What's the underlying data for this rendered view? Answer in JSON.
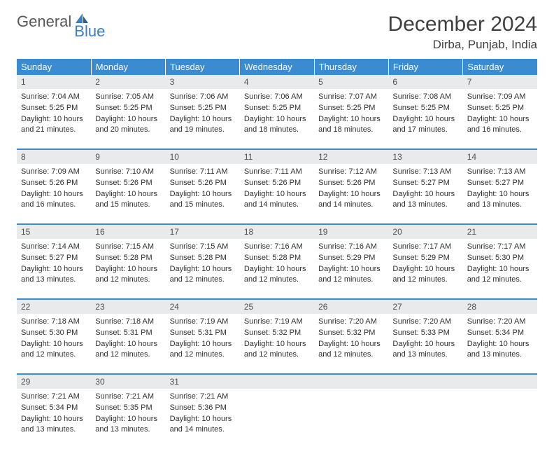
{
  "logo": {
    "part1": "General",
    "part2": "Blue"
  },
  "title": "December 2024",
  "location": "Dirba, Punjab, India",
  "colors": {
    "header_bg": "#3a8bd0",
    "header_text": "#ffffff",
    "daynum_bg": "#e9eaeb",
    "row_border": "#3a8bd0",
    "logo_gray": "#585858",
    "logo_blue": "#3a7fc4",
    "text": "#303030"
  },
  "day_headers": [
    "Sunday",
    "Monday",
    "Tuesday",
    "Wednesday",
    "Thursday",
    "Friday",
    "Saturday"
  ],
  "weeks": [
    [
      {
        "n": "1",
        "sr": "7:04 AM",
        "ss": "5:25 PM",
        "dl": "10 hours and 21 minutes."
      },
      {
        "n": "2",
        "sr": "7:05 AM",
        "ss": "5:25 PM",
        "dl": "10 hours and 20 minutes."
      },
      {
        "n": "3",
        "sr": "7:06 AM",
        "ss": "5:25 PM",
        "dl": "10 hours and 19 minutes."
      },
      {
        "n": "4",
        "sr": "7:06 AM",
        "ss": "5:25 PM",
        "dl": "10 hours and 18 minutes."
      },
      {
        "n": "5",
        "sr": "7:07 AM",
        "ss": "5:25 PM",
        "dl": "10 hours and 18 minutes."
      },
      {
        "n": "6",
        "sr": "7:08 AM",
        "ss": "5:25 PM",
        "dl": "10 hours and 17 minutes."
      },
      {
        "n": "7",
        "sr": "7:09 AM",
        "ss": "5:25 PM",
        "dl": "10 hours and 16 minutes."
      }
    ],
    [
      {
        "n": "8",
        "sr": "7:09 AM",
        "ss": "5:26 PM",
        "dl": "10 hours and 16 minutes."
      },
      {
        "n": "9",
        "sr": "7:10 AM",
        "ss": "5:26 PM",
        "dl": "10 hours and 15 minutes."
      },
      {
        "n": "10",
        "sr": "7:11 AM",
        "ss": "5:26 PM",
        "dl": "10 hours and 15 minutes."
      },
      {
        "n": "11",
        "sr": "7:11 AM",
        "ss": "5:26 PM",
        "dl": "10 hours and 14 minutes."
      },
      {
        "n": "12",
        "sr": "7:12 AM",
        "ss": "5:26 PM",
        "dl": "10 hours and 14 minutes."
      },
      {
        "n": "13",
        "sr": "7:13 AM",
        "ss": "5:27 PM",
        "dl": "10 hours and 13 minutes."
      },
      {
        "n": "14",
        "sr": "7:13 AM",
        "ss": "5:27 PM",
        "dl": "10 hours and 13 minutes."
      }
    ],
    [
      {
        "n": "15",
        "sr": "7:14 AM",
        "ss": "5:27 PM",
        "dl": "10 hours and 13 minutes."
      },
      {
        "n": "16",
        "sr": "7:15 AM",
        "ss": "5:28 PM",
        "dl": "10 hours and 12 minutes."
      },
      {
        "n": "17",
        "sr": "7:15 AM",
        "ss": "5:28 PM",
        "dl": "10 hours and 12 minutes."
      },
      {
        "n": "18",
        "sr": "7:16 AM",
        "ss": "5:28 PM",
        "dl": "10 hours and 12 minutes."
      },
      {
        "n": "19",
        "sr": "7:16 AM",
        "ss": "5:29 PM",
        "dl": "10 hours and 12 minutes."
      },
      {
        "n": "20",
        "sr": "7:17 AM",
        "ss": "5:29 PM",
        "dl": "10 hours and 12 minutes."
      },
      {
        "n": "21",
        "sr": "7:17 AM",
        "ss": "5:30 PM",
        "dl": "10 hours and 12 minutes."
      }
    ],
    [
      {
        "n": "22",
        "sr": "7:18 AM",
        "ss": "5:30 PM",
        "dl": "10 hours and 12 minutes."
      },
      {
        "n": "23",
        "sr": "7:18 AM",
        "ss": "5:31 PM",
        "dl": "10 hours and 12 minutes."
      },
      {
        "n": "24",
        "sr": "7:19 AM",
        "ss": "5:31 PM",
        "dl": "10 hours and 12 minutes."
      },
      {
        "n": "25",
        "sr": "7:19 AM",
        "ss": "5:32 PM",
        "dl": "10 hours and 12 minutes."
      },
      {
        "n": "26",
        "sr": "7:20 AM",
        "ss": "5:32 PM",
        "dl": "10 hours and 12 minutes."
      },
      {
        "n": "27",
        "sr": "7:20 AM",
        "ss": "5:33 PM",
        "dl": "10 hours and 13 minutes."
      },
      {
        "n": "28",
        "sr": "7:20 AM",
        "ss": "5:34 PM",
        "dl": "10 hours and 13 minutes."
      }
    ],
    [
      {
        "n": "29",
        "sr": "7:21 AM",
        "ss": "5:34 PM",
        "dl": "10 hours and 13 minutes."
      },
      {
        "n": "30",
        "sr": "7:21 AM",
        "ss": "5:35 PM",
        "dl": "10 hours and 13 minutes."
      },
      {
        "n": "31",
        "sr": "7:21 AM",
        "ss": "5:36 PM",
        "dl": "10 hours and 14 minutes."
      },
      null,
      null,
      null,
      null
    ]
  ],
  "labels": {
    "sunrise": "Sunrise:",
    "sunset": "Sunset:",
    "daylight": "Daylight:"
  }
}
